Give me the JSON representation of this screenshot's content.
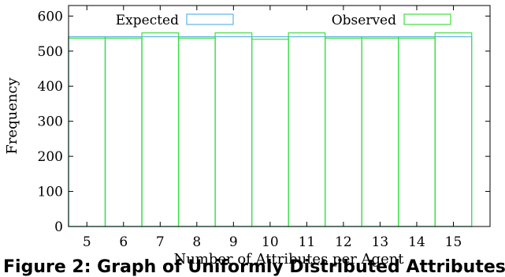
{
  "chart_data": {
    "type": "bar",
    "categories": [
      "5",
      "6",
      "7",
      "8",
      "9",
      "10",
      "11",
      "12",
      "13",
      "14",
      "15"
    ],
    "series": [
      {
        "name": "Expected",
        "values": [
          541,
          541,
          541,
          541,
          541,
          541,
          541,
          541,
          541,
          541,
          541
        ],
        "color": "#5ab4e8"
      },
      {
        "name": "Observed",
        "values": [
          537,
          537,
          552,
          537,
          552,
          534,
          552,
          537,
          537,
          537,
          552
        ],
        "color": "#3ee03e"
      }
    ],
    "xlabel": "Number of Attributes per Agent",
    "ylabel": "Frequency",
    "ylim": [
      0,
      630
    ],
    "yticks": [
      0,
      100,
      200,
      300,
      400,
      500,
      600
    ],
    "legend_position": "top"
  },
  "caption": "Figure 2: Graph of Uniformly Distributed Attributes"
}
